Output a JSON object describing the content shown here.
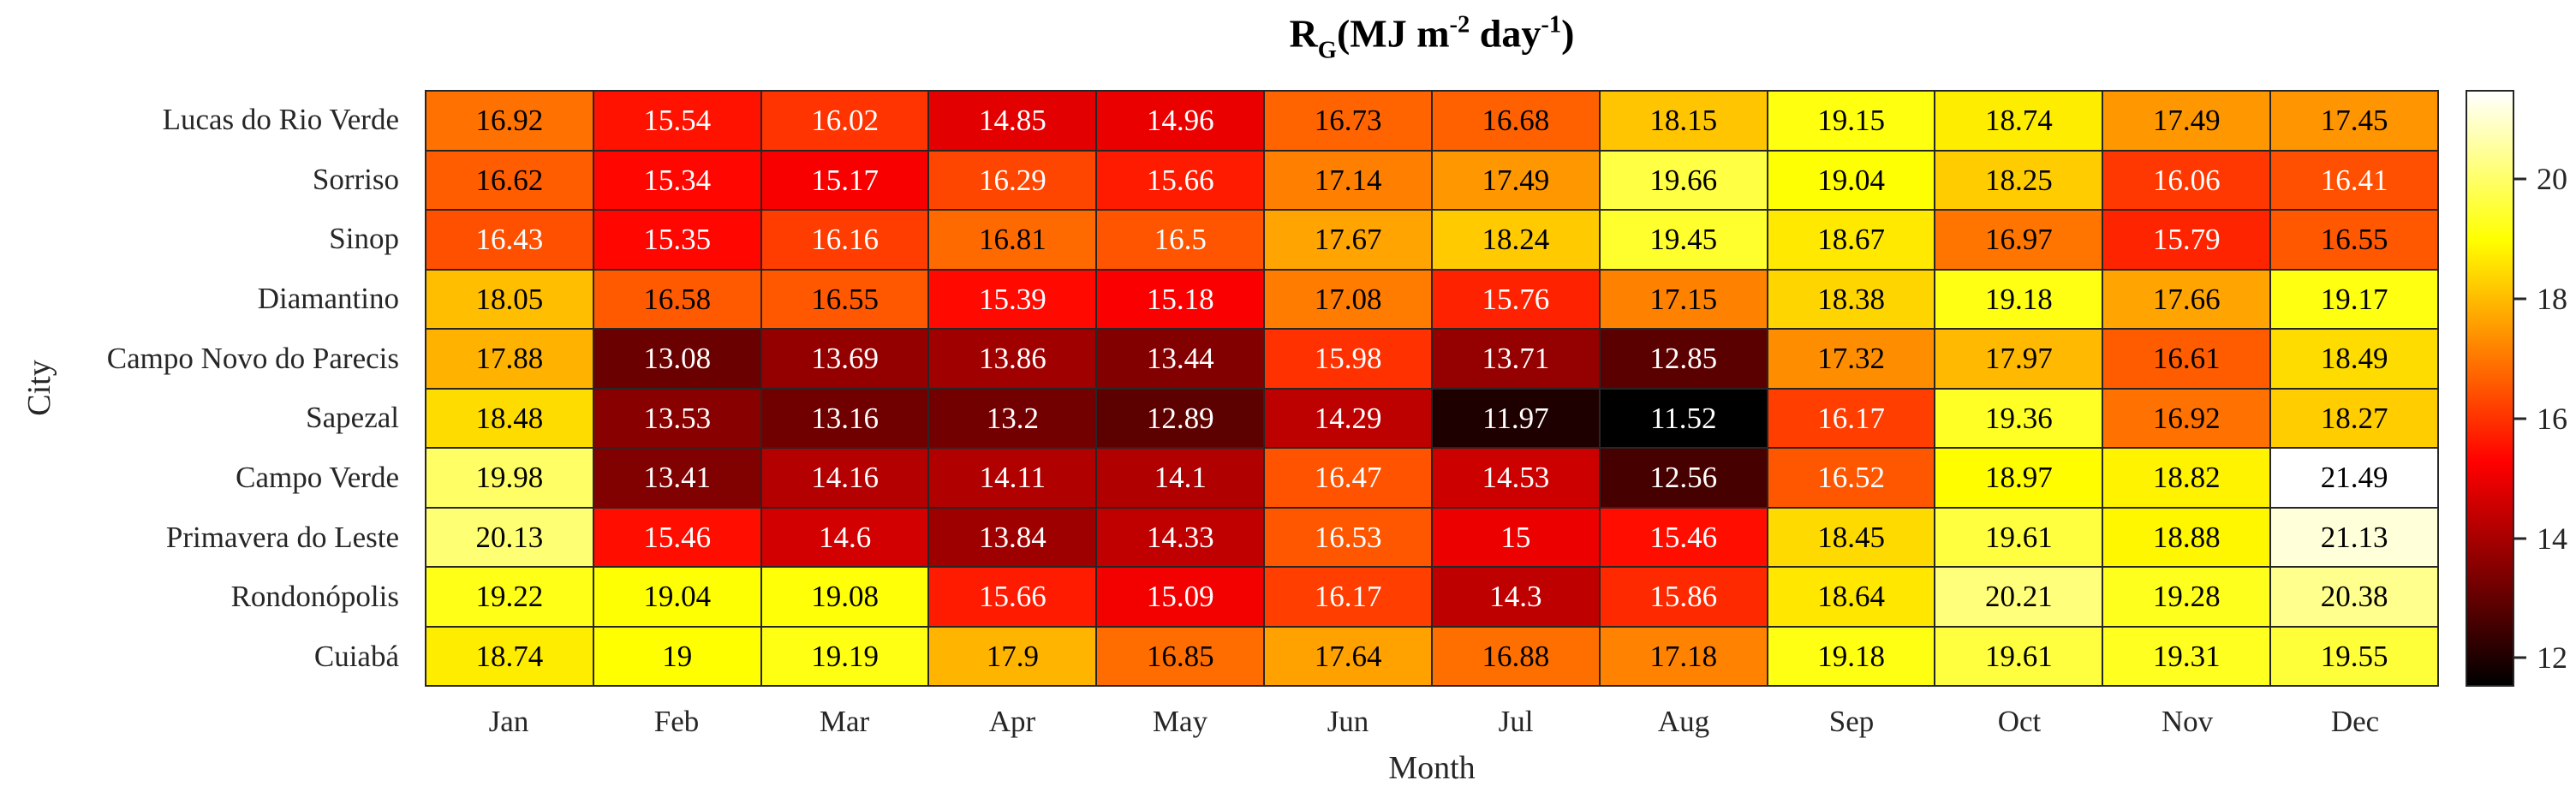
{
  "chart_data": {
    "type": "heatmap",
    "title": "R_G(MJ m^-2 day^-1)",
    "title_segments": [
      {
        "text": "R",
        "script": "normal"
      },
      {
        "text": "G",
        "script": "sub"
      },
      {
        "text": "(MJ m",
        "script": "normal"
      },
      {
        "text": "-2",
        "script": "sup"
      },
      {
        "text": " day",
        "script": "normal"
      },
      {
        "text": "-1",
        "script": "sup"
      },
      {
        "text": ")",
        "script": "normal"
      }
    ],
    "xlabel": "Month",
    "ylabel": "City",
    "columns": [
      "Jan",
      "Feb",
      "Mar",
      "Apr",
      "May",
      "Jun",
      "Jul",
      "Aug",
      "Sep",
      "Oct",
      "Nov",
      "Dec"
    ],
    "rows": [
      "Lucas do Rio Verde",
      "Sorriso",
      "Sinop",
      "Diamantino",
      "Campo Novo do Parecis",
      "Sapezal",
      "Campo Verde",
      "Primavera do Leste",
      "Rondonópolis",
      "Cuiabá"
    ],
    "values": [
      [
        16.92,
        15.54,
        16.02,
        14.85,
        14.96,
        16.73,
        16.68,
        18.15,
        19.15,
        18.74,
        17.49,
        17.45
      ],
      [
        16.62,
        15.34,
        15.17,
        16.29,
        15.66,
        17.14,
        17.49,
        19.66,
        19.04,
        18.25,
        16.06,
        16.41
      ],
      [
        16.43,
        15.35,
        16.16,
        16.81,
        16.5,
        17.67,
        18.24,
        19.45,
        18.67,
        16.97,
        15.79,
        16.55
      ],
      [
        18.05,
        16.58,
        16.55,
        15.39,
        15.18,
        17.08,
        15.76,
        17.15,
        18.38,
        19.18,
        17.66,
        19.17
      ],
      [
        17.88,
        13.08,
        13.69,
        13.86,
        13.44,
        15.98,
        13.71,
        12.85,
        17.32,
        17.97,
        16.61,
        18.49
      ],
      [
        18.48,
        13.53,
        13.16,
        13.2,
        12.89,
        14.29,
        11.97,
        11.52,
        16.17,
        19.36,
        16.92,
        18.27
      ],
      [
        19.98,
        13.41,
        14.16,
        14.11,
        14.1,
        16.47,
        14.53,
        12.56,
        16.52,
        18.97,
        18.82,
        21.49
      ],
      [
        20.13,
        15.46,
        14.6,
        13.84,
        14.33,
        16.53,
        15,
        15.46,
        18.45,
        19.61,
        18.88,
        21.13
      ],
      [
        19.22,
        19.04,
        19.08,
        15.66,
        15.09,
        16.17,
        14.3,
        15.86,
        18.64,
        20.21,
        19.28,
        20.38
      ],
      [
        18.74,
        19,
        19.19,
        17.9,
        16.85,
        17.64,
        16.88,
        17.18,
        19.18,
        19.61,
        19.31,
        19.55
      ]
    ],
    "colormap": "hot",
    "color_axis": {
      "min": 11.52,
      "max": 21.49
    },
    "colorbar_ticks": [
      20,
      18,
      16,
      14,
      12
    ],
    "grid_color": "#262626",
    "background": "#ffffff"
  }
}
